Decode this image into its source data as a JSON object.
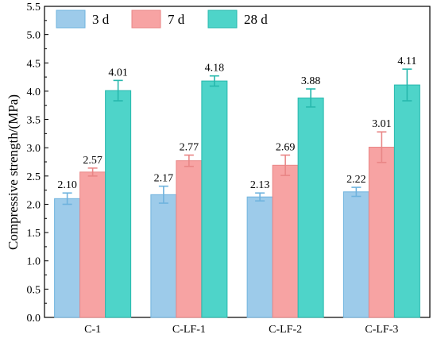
{
  "chart_data": {
    "type": "bar",
    "title": "",
    "xlabel": "",
    "ylabel": "Compressive strength/(MPa)",
    "ylim": [
      0.0,
      5.5
    ],
    "ytick_step": 0.5,
    "legend_position": "top-left",
    "grid": false,
    "categories": [
      "C-1",
      "C-LF-1",
      "C-LF-2",
      "C-LF-3"
    ],
    "series": [
      {
        "name": "3 d",
        "color": "#9dcbea",
        "edge": "#6fb3de",
        "error_color": "#6fb3de",
        "values": [
          2.1,
          2.17,
          2.13,
          2.22
        ],
        "errors": [
          0.1,
          0.15,
          0.07,
          0.08
        ],
        "labels": [
          "2.10",
          "2.17",
          "2.13",
          "2.22"
        ]
      },
      {
        "name": "7 d",
        "color": "#f7a3a3",
        "edge": "#e98686",
        "error_color": "#e98686",
        "values": [
          2.57,
          2.77,
          2.69,
          3.01
        ],
        "errors": [
          0.07,
          0.1,
          0.18,
          0.27
        ],
        "labels": [
          "2.57",
          "2.77",
          "2.69",
          "3.01"
        ]
      },
      {
        "name": "28 d",
        "color": "#4ed4c9",
        "edge": "#27b8ad",
        "error_color": "#27b8ad",
        "values": [
          4.01,
          4.18,
          3.88,
          4.11
        ],
        "errors": [
          0.18,
          0.09,
          0.16,
          0.28
        ],
        "labels": [
          "4.01",
          "4.18",
          "3.88",
          "4.11"
        ]
      }
    ]
  }
}
